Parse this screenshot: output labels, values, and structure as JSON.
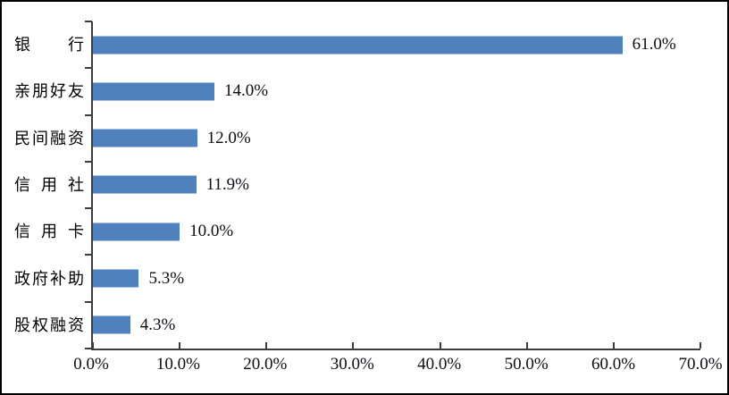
{
  "chart_data": {
    "type": "bar",
    "orientation": "horizontal",
    "title": "",
    "categories": [
      "银行",
      "亲朋好友",
      "民间融资",
      "信用社",
      "信用卡",
      "政府补助",
      "股权融资"
    ],
    "values": [
      61.0,
      14.0,
      12.0,
      11.9,
      10.0,
      5.3,
      4.3
    ],
    "value_labels": [
      "61.0%",
      "14.0%",
      "12.0%",
      "11.9%",
      "10.0%",
      "5.3%",
      "4.3%"
    ],
    "x_axis": {
      "min": 0,
      "max": 70,
      "tick_values": [
        0,
        10,
        20,
        30,
        40,
        50,
        60,
        70
      ],
      "tick_labels": [
        "0.0%",
        "10.0%",
        "20.0%",
        "30.0%",
        "40.0%",
        "50.0%",
        "60.0%",
        "70.0%"
      ]
    },
    "grid": false,
    "legend_position": "none",
    "bar_color": "#4f81bd",
    "bar_edge_color": "#a6bedf",
    "axis_color": "#3c3c3c",
    "text_color": "#0d0d14",
    "frame_border_color": "#000000",
    "background_color": "#ffffff"
  }
}
